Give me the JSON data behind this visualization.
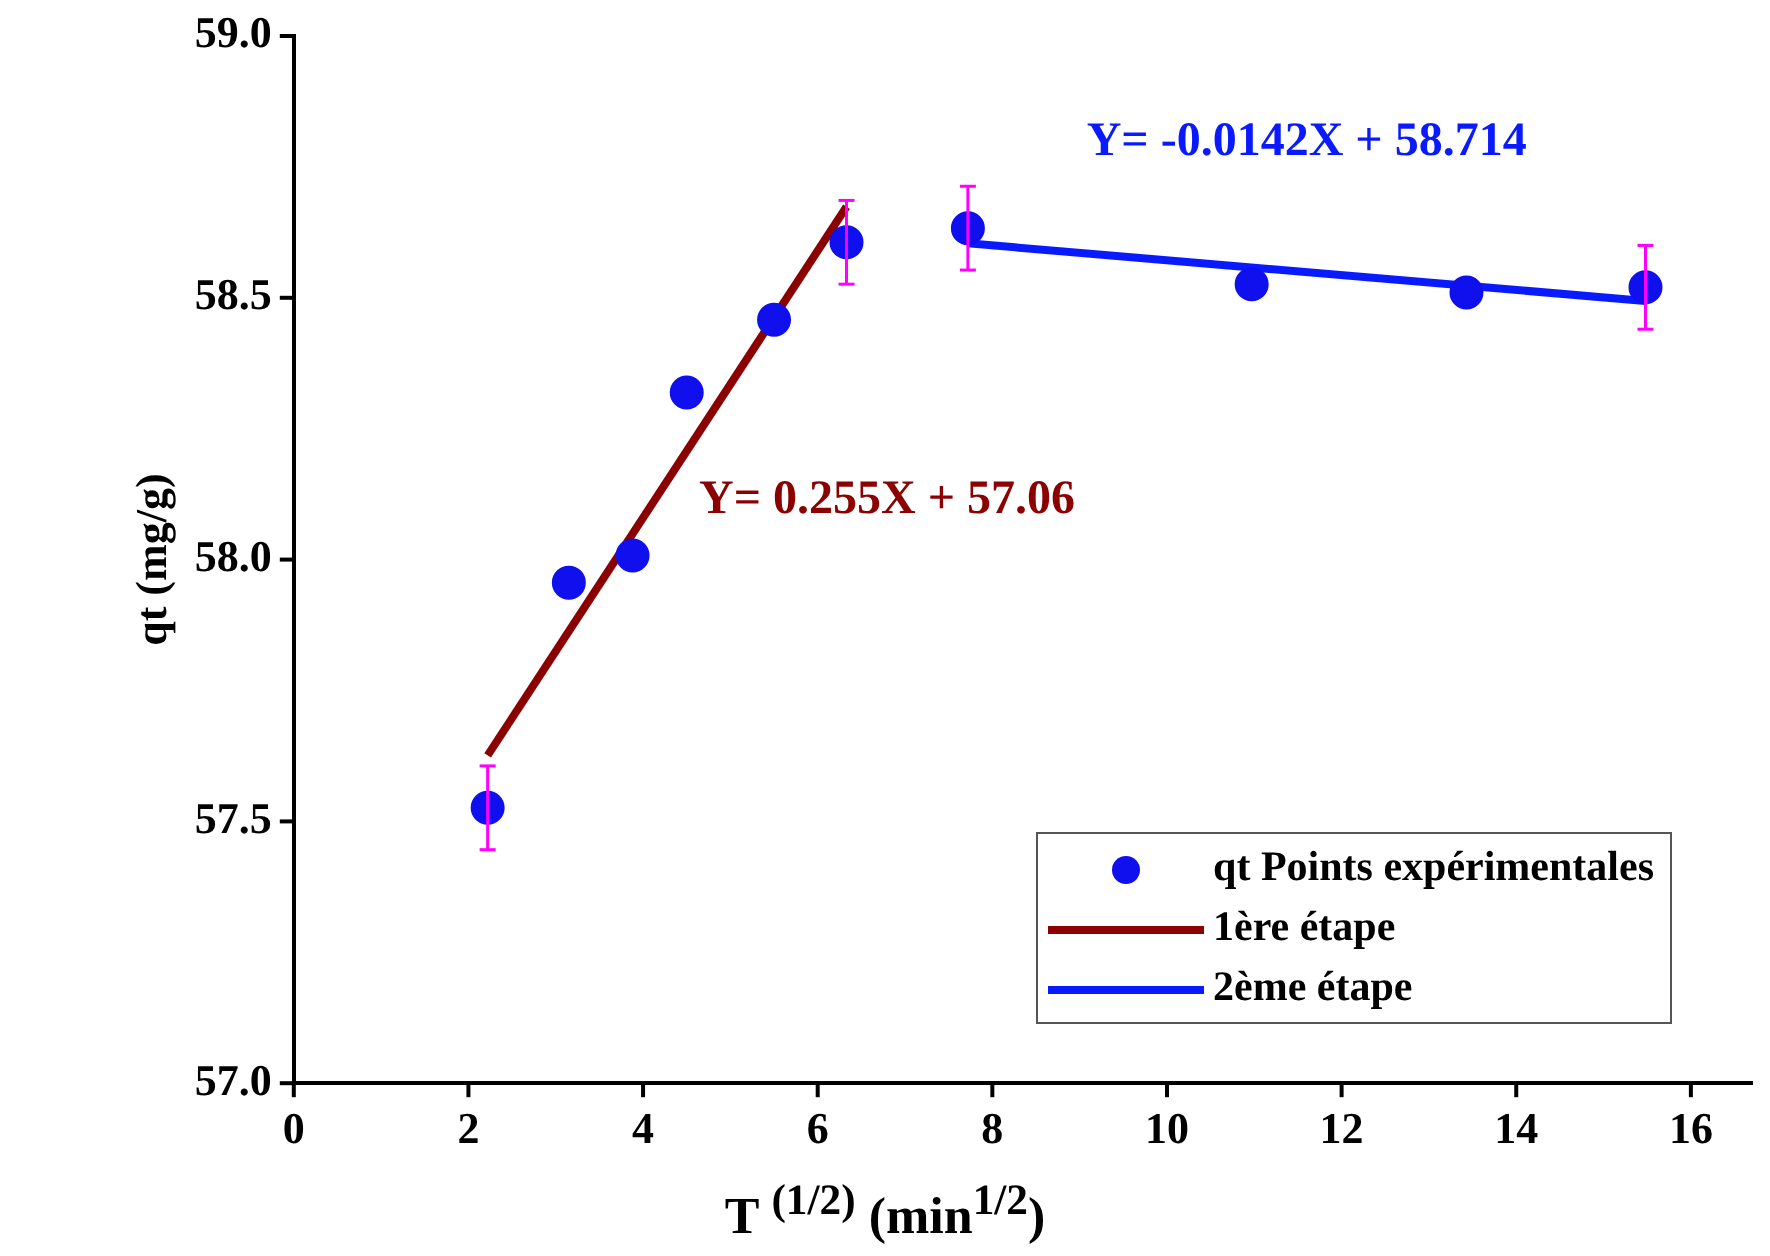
{
  "chart_data": {
    "type": "scatter",
    "xlabel": "T $^{(1/2)}$ (min$^{1/2}$)",
    "ylabel": "qt (mg/g)",
    "xlim": [
      0,
      16.7
    ],
    "xticks": [
      0,
      2,
      4,
      6,
      8,
      10,
      12,
      14,
      16
    ],
    "ylim": [
      57,
      59
    ],
    "yticks": [
      {
        "value": 57,
        "label": "57.0"
      },
      57.5,
      {
        "value": 58,
        "label": "58.0"
      },
      58.5,
      {
        "value": 59,
        "label": "59.0"
      }
    ],
    "grid": false,
    "legend": "bottom right",
    "series": [
      {
        "name": "qt Points expérimentales",
        "marker": "circle",
        "color": "#1010ee",
        "x": [
          2.22,
          3.15,
          3.88,
          4.5,
          5.5,
          6.33,
          7.72,
          10.97,
          13.43,
          15.48
        ],
        "values": [
          57.526,
          57.956,
          58.008,
          58.319,
          58.458,
          58.606,
          58.633,
          58.526,
          58.51,
          58.52
        ],
        "errors": [
          0.08,
          null,
          null,
          null,
          null,
          0.08,
          0.08,
          null,
          null,
          0.08
        ]
      },
      {
        "name": "1ère étape",
        "type": "line",
        "color": "#8b0000",
        "x": [
          2.22,
          6.33
        ],
        "values": [
          57.626,
          58.674
        ]
      },
      {
        "name": "2ème étape",
        "type": "line",
        "color": "#0a1aff",
        "x": [
          7.72,
          15.48
        ],
        "values": [
          58.604,
          58.494
        ]
      }
    ],
    "annotations": [
      "Y= 0.255X + 57.06",
      "Y= -0.0142X + 58.714"
    ]
  }
}
